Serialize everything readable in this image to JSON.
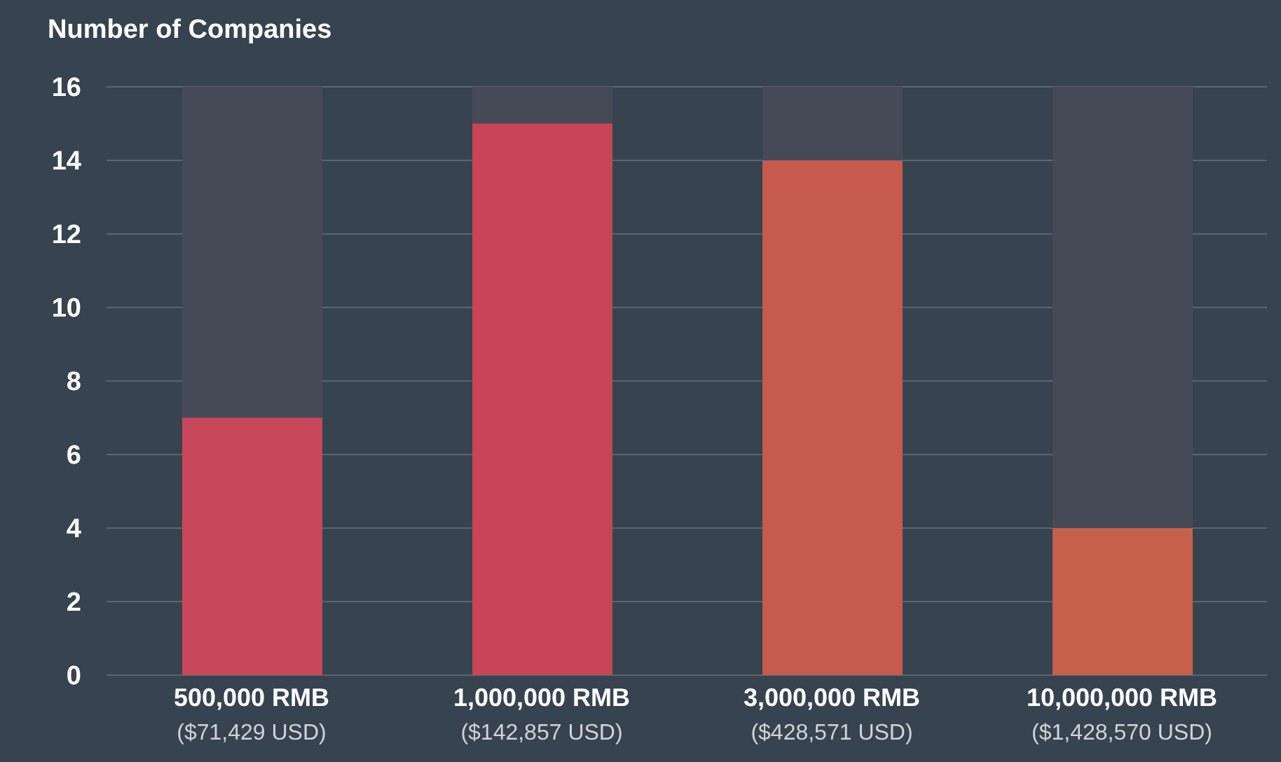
{
  "chart_data": {
    "type": "bar",
    "ylabel": "Number of Companies",
    "categories": [
      "500,000 RMB\n($71,429 USD)",
      "1,000,000 RMB\n($142,857 USD)",
      "3,000,000 RMB\n($428,571 USD)",
      "10,000,000 RMB\n($1,428,570 USD)"
    ],
    "values": [
      7,
      15,
      14,
      4
    ],
    "colors": [
      "#c8475a",
      "#c84457",
      "#c65a4d",
      "#c6604a"
    ],
    "ylim": [
      0,
      16
    ],
    "yticks": [
      0,
      2,
      4,
      6,
      8,
      10,
      12,
      14,
      16
    ],
    "grid": "y"
  }
}
